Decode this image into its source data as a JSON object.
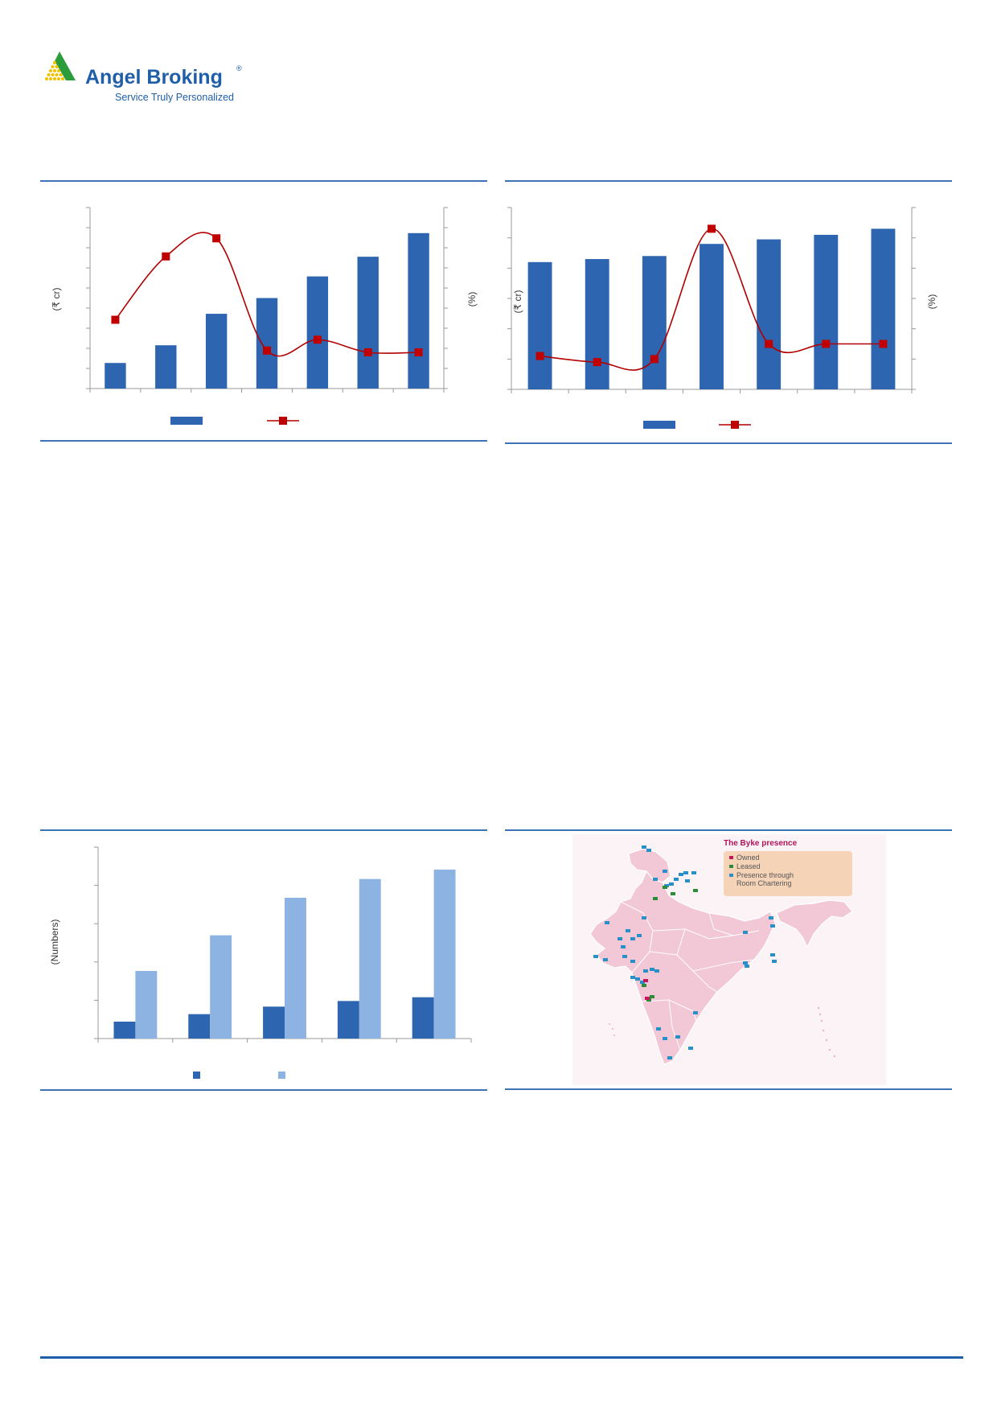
{
  "header": {
    "brand_name": "Angel Broking",
    "brand_tagline": "Service Truly Personalized",
    "registered_mark": "®",
    "colors": {
      "brand_blue": "#1f5ea8",
      "logo_green": "#2a9d3a",
      "logo_yellow": "#f2c200"
    }
  },
  "colors": {
    "bar_dark": "#2e65b1",
    "bar_light": "#8db3e2",
    "line_red": "#b00000",
    "marker_red": "#c00000",
    "rule_blue": "#3d72b4",
    "map_pink": "#f2c7d6",
    "map_border": "#ffffff"
  },
  "chart_data": [
    {
      "id": "chart-1",
      "type": "bar+line",
      "ylabel_left": "(₹ cr)",
      "ylabel_right": "(%)",
      "series": [
        {
          "kind": "bar",
          "values": [
            13,
            22,
            38,
            46,
            57,
            67,
            79
          ]
        },
        {
          "kind": "line",
          "values": [
            38,
            73,
            83,
            21,
            27,
            20,
            20
          ]
        }
      ],
      "ylim_left": [
        0,
        92
      ],
      "ylim_right": [
        0,
        100
      ],
      "legend": "bottom"
    },
    {
      "id": "chart-2",
      "type": "bar+line",
      "ylabel_left": "(₹ cr)",
      "ylabel_right": "(%)",
      "series": [
        {
          "kind": "bar",
          "values": [
            42,
            43,
            44,
            48,
            49.5,
            51,
            53
          ]
        },
        {
          "kind": "line",
          "values": [
            11,
            9,
            10,
            53,
            15,
            15,
            15
          ]
        }
      ],
      "ylim_left": [
        0,
        60
      ],
      "ylim_right": [
        0,
        60
      ],
      "legend": "bottom"
    },
    {
      "id": "chart-3",
      "type": "bar",
      "ylabel": "(Numbers)",
      "series": [
        {
          "kind": "bar",
          "tone": "dark",
          "values": [
            9,
            13,
            17,
            20,
            22
          ]
        },
        {
          "kind": "bar",
          "tone": "light",
          "values": [
            36,
            55,
            75,
            85,
            90
          ]
        }
      ],
      "ylim": [
        0,
        102
      ],
      "legend": "bottom"
    }
  ],
  "map": {
    "title": "The Byke presence",
    "legend": [
      {
        "label": "Owned",
        "color": "#c2185b"
      },
      {
        "label": "Leased",
        "color": "#2e8b3a"
      },
      {
        "label": "Presence through",
        "color": "#2a8fc7"
      },
      {
        "label": "Room Chartering",
        "color": ""
      }
    ]
  }
}
